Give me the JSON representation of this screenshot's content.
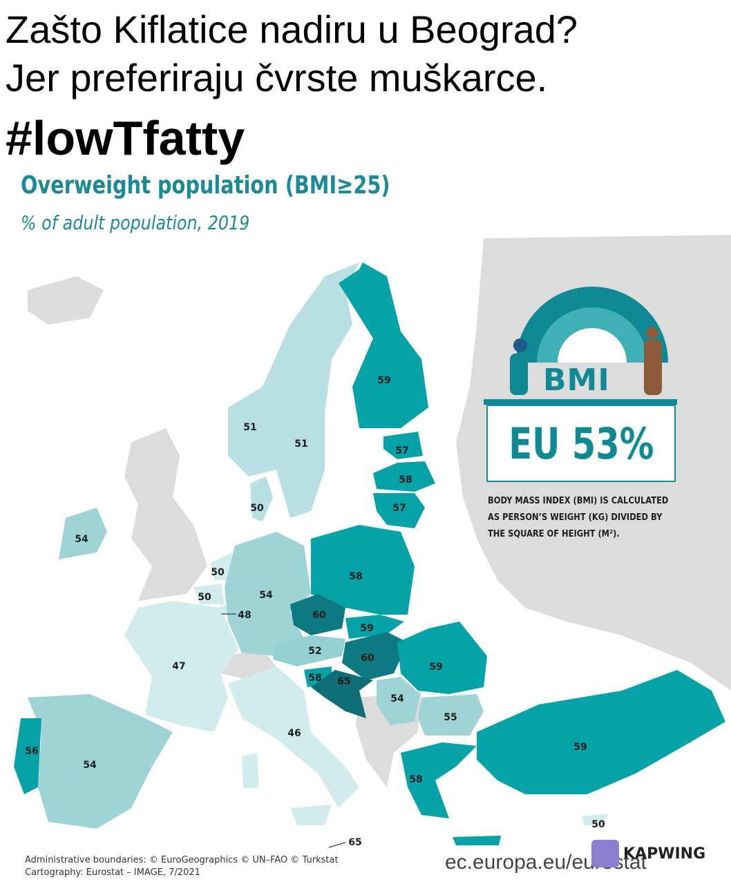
{
  "caption": {
    "line1": "Zašto Kiflatice nadiru u Beograd?",
    "line2": "Jer preferiraju čvrste muškarce.",
    "hashtag": "#lowTfatty"
  },
  "map": {
    "title": "Overweight population (BMI≥25)",
    "subtitle": "% of adult population, 2019",
    "values": {
      "finland": "59",
      "norway": "51",
      "sweden": "51",
      "estonia": "57",
      "latvia": "58",
      "lithuania": "57",
      "denmark": "50",
      "ireland": "54",
      "netherlands": "50",
      "belgium": "50",
      "luxembourg": "48",
      "germany": "54",
      "poland": "58",
      "czechia": "60",
      "slovakia": "59",
      "austria": "52",
      "hungary": "60",
      "slovenia": "58",
      "croatia": "65",
      "romania": "59",
      "serbia": "54",
      "bulgaria": "55",
      "france": "47",
      "italy": "46",
      "spain": "54",
      "portugal": "56",
      "greece": "58",
      "turkey": "59",
      "cyprus": "50",
      "malta": "65"
    },
    "colors": {
      "c46": "#d2ecee",
      "c50": "#b8dfe2",
      "c52": "#94d0d4",
      "c54": "#9fd4d7",
      "c58": "#05a3a8",
      "c60": "#0d7a82",
      "c65": "#0f6e78",
      "other": "#dcdcdc"
    },
    "eu_value": "EU 53%",
    "bmi_label": "BMI",
    "note": "BODY MASS INDEX (BMI) IS CALCULATED AS PERSON’S WEIGHT (KG) DIVIDED BY THE SQUARE OF HEIGHT (M²).",
    "credits_line1": "Administrative boundaries: © EuroGeographics © UN–FAO © Turkstat",
    "credits_line2": "Cartography: Eurostat – IMAGE, 7/2021"
  },
  "footer": {
    "source_url": "ec.europa.eu/eurostat",
    "watermark": "KAPWING"
  }
}
